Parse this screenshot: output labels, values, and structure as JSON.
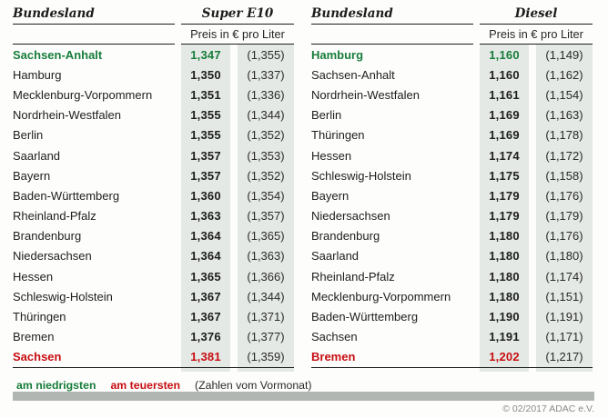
{
  "colors": {
    "cheapest_text": "#177d3b",
    "most_expensive_text": "#c70d12",
    "price_column_bg": "#e4e9e5",
    "rule": "#1d1d1b",
    "footer_bar": "#b1b6b3",
    "copyright_text": "#878b89"
  },
  "tables": [
    {
      "land_header": "Bundesland",
      "fuel_header": "Super E10",
      "price_unit_label": "Preis in € pro Liter",
      "rows": [
        {
          "land": "Sachsen-Anhalt",
          "price": "1,347",
          "previous": "(1,355)",
          "highlight": "min"
        },
        {
          "land": "Hamburg",
          "price": "1,350",
          "previous": "(1,337)"
        },
        {
          "land": "Mecklenburg-Vorpommern",
          "price": "1,351",
          "previous": "(1,336)"
        },
        {
          "land": "Nordrhein-Westfalen",
          "price": "1,355",
          "previous": "(1,344)"
        },
        {
          "land": "Berlin",
          "price": "1,355",
          "previous": "(1,352)"
        },
        {
          "land": "Saarland",
          "price": "1,357",
          "previous": "(1,353)"
        },
        {
          "land": "Bayern",
          "price": "1,357",
          "previous": "(1,352)"
        },
        {
          "land": "Baden-Württemberg",
          "price": "1,360",
          "previous": "(1,354)"
        },
        {
          "land": "Rheinland-Pfalz",
          "price": "1,363",
          "previous": "(1,357)"
        },
        {
          "land": "Brandenburg",
          "price": "1,364",
          "previous": "(1,365)"
        },
        {
          "land": "Niedersachsen",
          "price": "1,364",
          "previous": "(1,363)"
        },
        {
          "land": "Hessen",
          "price": "1,365",
          "previous": "(1,366)"
        },
        {
          "land": "Schleswig-Holstein",
          "price": "1,367",
          "previous": "(1,344)"
        },
        {
          "land": "Thüringen",
          "price": "1,367",
          "previous": "(1,371)"
        },
        {
          "land": "Bremen",
          "price": "1,376",
          "previous": "(1,377)"
        },
        {
          "land": "Sachsen",
          "price": "1,381",
          "previous": "(1,359)",
          "highlight": "max"
        }
      ]
    },
    {
      "land_header": "Bundesland",
      "fuel_header": "Diesel",
      "price_unit_label": "Preis in € pro Liter",
      "rows": [
        {
          "land": "Hamburg",
          "price": "1,160",
          "previous": "(1,149)",
          "highlight": "min"
        },
        {
          "land": "Sachsen-Anhalt",
          "price": "1,160",
          "previous": "(1,162)"
        },
        {
          "land": "Nordrhein-Westfalen",
          "price": "1,161",
          "previous": "(1,154)"
        },
        {
          "land": "Berlin",
          "price": "1,169",
          "previous": "(1,163)"
        },
        {
          "land": "Thüringen",
          "price": "1,169",
          "previous": "(1,178)"
        },
        {
          "land": "Hessen",
          "price": "1,174",
          "previous": "(1,172)"
        },
        {
          "land": "Schleswig-Holstein",
          "price": "1,175",
          "previous": "(1,158)"
        },
        {
          "land": "Bayern",
          "price": "1,179",
          "previous": "(1,176)"
        },
        {
          "land": "Niedersachsen",
          "price": "1,179",
          "previous": "(1,179)"
        },
        {
          "land": "Brandenburg",
          "price": "1,180",
          "previous": "(1,176)"
        },
        {
          "land": "Saarland",
          "price": "1,180",
          "previous": "(1,180)"
        },
        {
          "land": "Rheinland-Pfalz",
          "price": "1,180",
          "previous": "(1,174)"
        },
        {
          "land": "Mecklenburg-Vorpommern",
          "price": "1,180",
          "previous": "(1,151)"
        },
        {
          "land": "Baden-Württemberg",
          "price": "1,190",
          "previous": "(1,191)"
        },
        {
          "land": "Sachsen",
          "price": "1,191",
          "previous": "(1,171)"
        },
        {
          "land": "Bremen",
          "price": "1,202",
          "previous": "(1,217)",
          "highlight": "max"
        }
      ]
    }
  ],
  "legend": {
    "cheapest_label": "am niedrigsten",
    "most_expensive_label": "am teuersten",
    "note": "(Zahlen vom Vormonat)"
  },
  "footer": {
    "copyright": "© 02/2017 ADAC e.V."
  }
}
